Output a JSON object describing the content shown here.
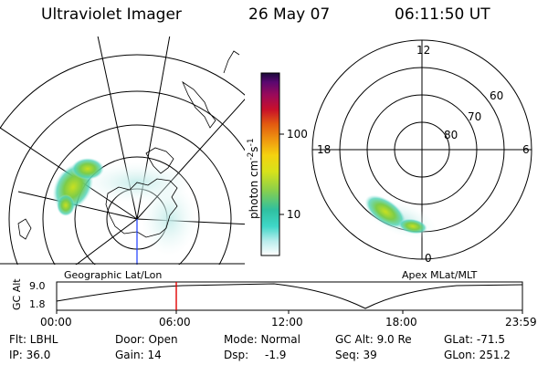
{
  "header": {
    "instrument": "Ultraviolet Imager",
    "date": "26 May 07",
    "time": "06:11:50 UT"
  },
  "colorbar": {
    "unit_label": "photon cm",
    "unit_sup1": "-2",
    "unit_mid": "s",
    "unit_sup2": "-1",
    "tick_labels": [
      "100",
      "10"
    ],
    "colors": [
      "#ffffff",
      "#b8ecec",
      "#3fd7c8",
      "#2fc0a0",
      "#8cd04a",
      "#d7e21a",
      "#f5d20f",
      "#f09a10",
      "#e25a10",
      "#c8102a",
      "#9a0a5a",
      "#5a0870",
      "#1a0a3a"
    ]
  },
  "geo_map": {
    "caption": "Geographic Lat/Lon"
  },
  "mag_polar": {
    "caption": "Apex MLat/MLT",
    "mlt_labels": [
      "12",
      "18",
      "6",
      "0"
    ],
    "lat_labels": [
      "60",
      "70",
      "80"
    ]
  },
  "altitude_plot": {
    "axis_label": "GC Alt",
    "y_ticks": [
      "9.0",
      "1.8"
    ],
    "x_ticks": [
      "00:00",
      "06:00",
      "12:00",
      "18:00",
      "23:59"
    ]
  },
  "status": {
    "row1": {
      "flt": "Flt: LBHL",
      "door": "Door: Open",
      "mode": "Mode: Normal",
      "gc_alt": "GC Alt: 9.0 Re",
      "glat": "GLat: -71.5"
    },
    "row2": {
      "ip": "IP: 36.0",
      "gain": "Gain: 14",
      "dsp_label": "Dsp:",
      "dsp_value": "-1.9",
      "seq": "Seq: 39",
      "glon": "GLon: 251.2"
    }
  }
}
